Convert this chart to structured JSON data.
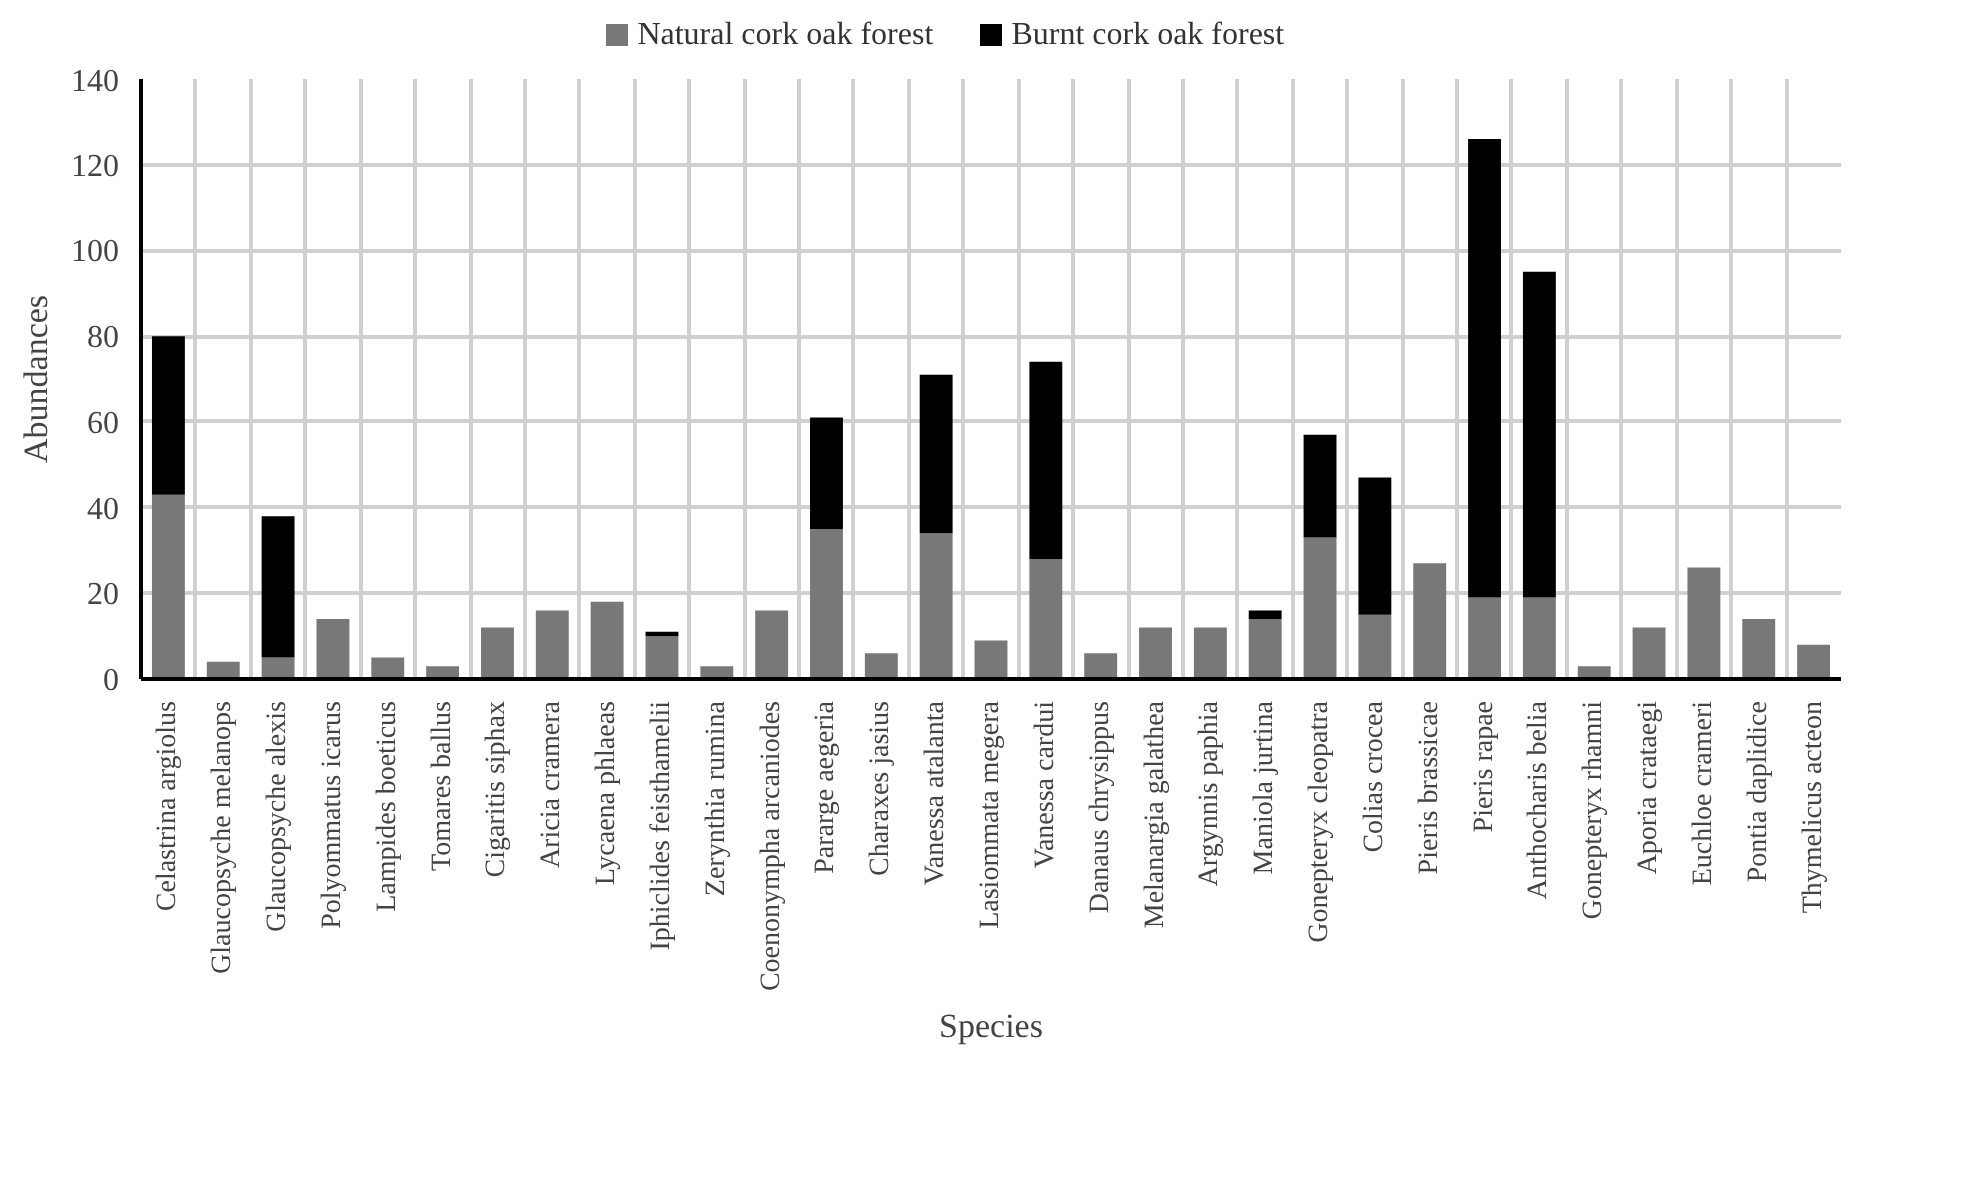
{
  "chart_data": {
    "type": "bar",
    "stacked": true,
    "xlabel": "Species",
    "ylabel": "Abundances",
    "categories": [
      "Celastrina argiolus",
      "Glaucopsyche melanops",
      "Glaucopsyche alexis",
      "Polyommatus icarus",
      "Lampides boeticus",
      "Tomares ballus",
      "Cigaritis siphax",
      "Aricia cramera",
      "Lycaena phlaeas",
      "Iphiclides feisthamelii",
      "Zerynthia rumina",
      "Coenonympha arcaniodes",
      "Pararge aegeria",
      "Charaxes jasius",
      "Vanessa atalanta",
      "Lasiommata megera",
      "Vanessa cardui",
      "Danaus chrysippus",
      "Melanargia galathea",
      "Argynnis paphia",
      "Maniola jurtina",
      "Gonepteryx cleopatra",
      "Colias crocea",
      "Pieris brassicae",
      "Pieris rapae",
      "Anthocharis belia",
      "Gonepteryx rhamni",
      "Aporia crataegi",
      "Euchloe crameri",
      "Pontia daplidice",
      "Thymelicus acteon"
    ],
    "series": [
      {
        "name": "Natural cork oak forest",
        "color": "#76787a",
        "values": [
          43,
          4,
          5,
          14,
          5,
          3,
          12,
          16,
          18,
          10,
          3,
          16,
          35,
          6,
          34,
          9,
          28,
          6,
          12,
          12,
          14,
          33,
          15,
          27,
          19,
          19,
          3,
          12,
          26,
          14,
          8
        ]
      },
      {
        "name": "Burnt cork oak forest",
        "color": "#000000",
        "values": [
          37,
          0,
          33,
          0,
          0,
          0,
          0,
          0,
          0,
          1,
          0,
          0,
          26,
          0,
          37,
          0,
          46,
          0,
          0,
          0,
          2,
          24,
          32,
          0,
          107,
          76,
          0,
          0,
          0,
          0,
          0
        ]
      }
    ],
    "ylim": [
      0,
      140
    ],
    "yticks": [
      0,
      20,
      40,
      60,
      80,
      100,
      120,
      140
    ],
    "grid": true,
    "legend": "top"
  }
}
